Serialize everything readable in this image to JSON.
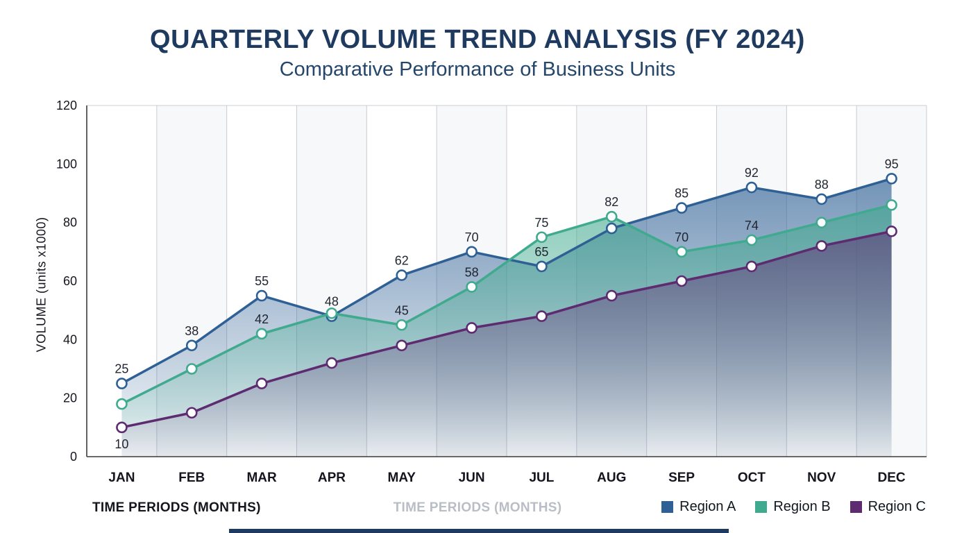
{
  "title": "QUARTERLY VOLUME TREND ANALYSIS (FY 2024)",
  "subtitle": "Comparative Performance of Business Units",
  "axis": {
    "y_label": "VOLUME (units x1000)",
    "x_label_primary": "TIME PERIODS (MONTHS)",
    "x_label_secondary": "TIME PERIODS (MONTHS)"
  },
  "chart_data": {
    "type": "area",
    "title": "QUARTERLY VOLUME TREND ANALYSIS (FY 2024)",
    "xlabel": "TIME PERIODS (MONTHS)",
    "ylabel": "VOLUME (units x1000)",
    "ylim": [
      0,
      120
    ],
    "yticks": [
      0,
      20,
      40,
      60,
      80,
      100,
      120
    ],
    "grid": "vertical",
    "legend_position": "bottom-right",
    "categories": [
      "JAN",
      "FEB",
      "MAR",
      "APR",
      "MAY",
      "JUN",
      "JUL",
      "AUG",
      "SEP",
      "OCT",
      "NOV",
      "DEC"
    ],
    "series": [
      {
        "name": "Region A",
        "color": "#2e6095",
        "values": [
          25,
          38,
          55,
          48,
          62,
          70,
          65,
          78,
          85,
          92,
          88,
          95
        ],
        "labels": [
          25,
          38,
          55,
          48,
          62,
          70,
          65,
          null,
          85,
          92,
          88,
          95
        ],
        "label_below_indices": []
      },
      {
        "name": "Region B",
        "color": "#3faa8d",
        "values": [
          18,
          30,
          42,
          49,
          45,
          58,
          75,
          82,
          70,
          74,
          80,
          86
        ],
        "labels": [
          null,
          null,
          42,
          null,
          45,
          58,
          75,
          82,
          70,
          74,
          null,
          null
        ],
        "label_below_indices": []
      },
      {
        "name": "Region C",
        "color": "#5e2a70",
        "values": [
          10,
          15,
          25,
          32,
          38,
          44,
          48,
          55,
          60,
          65,
          72,
          77
        ],
        "labels": [
          10,
          null,
          null,
          null,
          null,
          null,
          null,
          null,
          null,
          null,
          null,
          null
        ],
        "label_below_indices": [
          0
        ]
      }
    ]
  }
}
